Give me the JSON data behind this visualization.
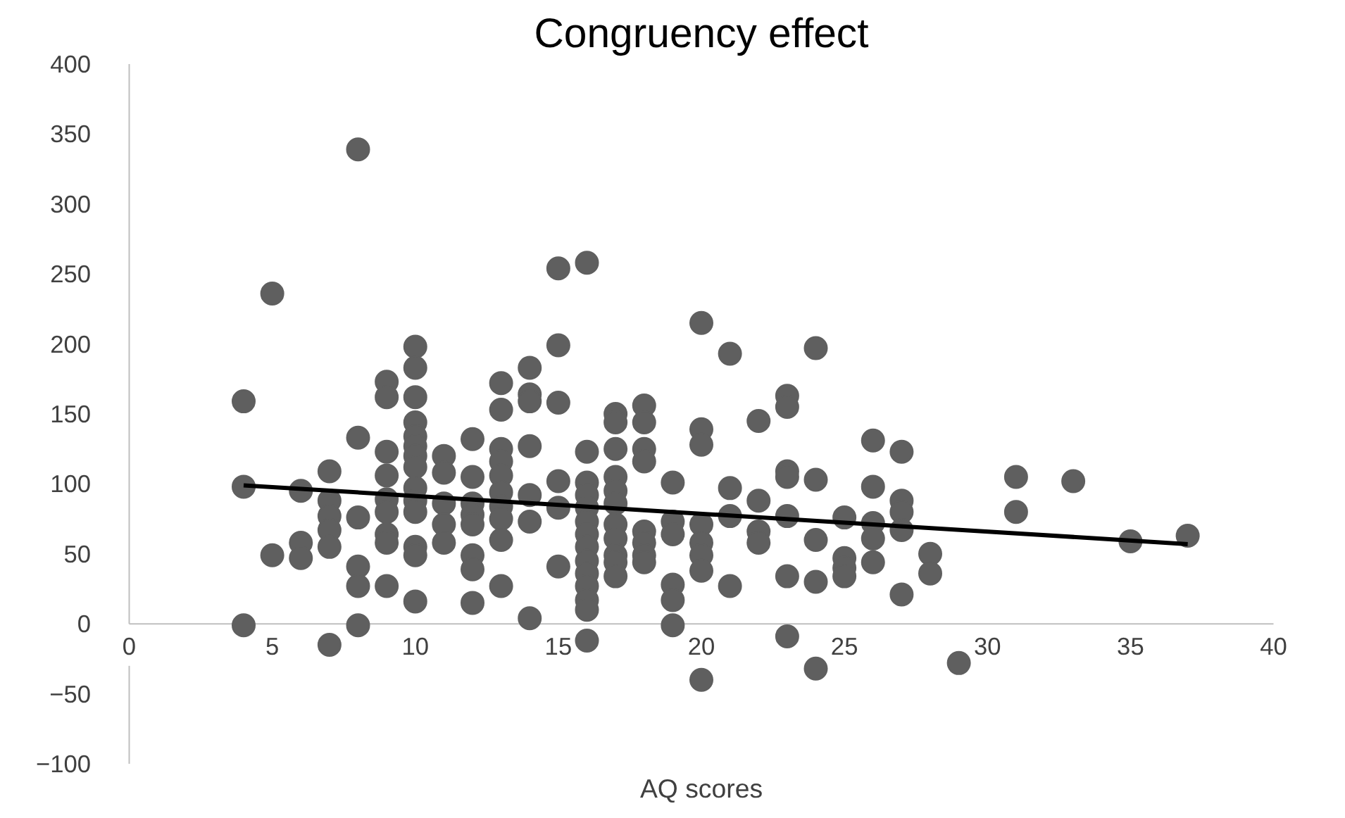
{
  "chart_data": {
    "type": "scatter",
    "title": "Congruency effect",
    "xlabel": "AQ scores",
    "xlim": [
      0,
      40
    ],
    "xticks": [
      0,
      5,
      10,
      15,
      20,
      25,
      30,
      35,
      40
    ],
    "ylim": [
      -100,
      400
    ],
    "yticks": [
      -100,
      -50,
      0,
      50,
      100,
      150,
      200,
      250,
      300,
      350,
      400
    ],
    "grid": false,
    "series": [
      {
        "color": "#5f5f5f",
        "marker": "circle",
        "x": [
          4,
          4,
          4,
          5,
          5,
          6,
          6,
          6,
          7,
          7,
          7,
          7,
          7,
          7,
          8,
          8,
          8,
          8,
          8,
          8,
          9,
          9,
          9,
          9,
          9,
          9,
          9,
          9,
          9,
          10,
          10,
          10,
          10,
          10,
          10,
          10,
          10,
          10,
          10,
          10,
          10,
          10,
          10,
          11,
          11,
          11,
          11,
          11,
          12,
          12,
          12,
          12,
          12,
          12,
          12,
          12,
          13,
          13,
          13,
          13,
          13,
          13,
          13,
          13,
          13,
          13,
          14,
          14,
          14,
          14,
          14,
          14,
          14,
          15,
          15,
          15,
          15,
          15,
          15,
          16,
          16,
          16,
          16,
          16,
          16,
          16,
          16,
          16,
          16,
          16,
          16,
          16,
          16,
          17,
          17,
          17,
          17,
          17,
          17,
          17,
          17,
          17,
          17,
          17,
          18,
          18,
          18,
          18,
          18,
          18,
          18,
          18,
          19,
          19,
          19,
          19,
          19,
          19,
          20,
          20,
          20,
          20,
          20,
          20,
          20,
          20,
          21,
          21,
          21,
          21,
          22,
          22,
          22,
          22,
          23,
          23,
          23,
          23,
          23,
          23,
          23,
          24,
          24,
          24,
          24,
          24,
          25,
          25,
          25,
          25,
          26,
          26,
          26,
          26,
          26,
          27,
          27,
          27,
          27,
          27,
          28,
          28,
          29,
          31,
          31,
          33,
          35,
          37
        ],
        "values": [
          159,
          98,
          -1,
          236,
          49,
          95,
          58,
          47,
          109,
          88,
          77,
          67,
          55,
          -15,
          339,
          133,
          76,
          41,
          27,
          -1,
          173,
          162,
          123,
          106,
          89,
          80,
          64,
          58,
          27,
          198,
          183,
          162,
          144,
          134,
          127,
          120,
          112,
          97,
          88,
          80,
          55,
          49,
          16,
          120,
          108,
          86,
          71,
          58,
          132,
          105,
          86,
          78,
          71,
          49,
          39,
          15,
          172,
          153,
          125,
          116,
          106,
          94,
          84,
          75,
          60,
          27,
          183,
          164,
          159,
          127,
          92,
          73,
          4,
          254,
          199,
          158,
          102,
          83,
          41,
          258,
          123,
          101,
          92,
          83,
          73,
          64,
          55,
          45,
          36,
          27,
          17,
          10,
          -12,
          150,
          144,
          125,
          105,
          95,
          86,
          71,
          61,
          49,
          44,
          34,
          156,
          144,
          125,
          116,
          66,
          58,
          49,
          44,
          101,
          73,
          64,
          28,
          17,
          -1,
          215,
          139,
          128,
          71,
          58,
          49,
          38,
          -40,
          193,
          97,
          77,
          27,
          145,
          88,
          66,
          58,
          163,
          155,
          109,
          105,
          77,
          34,
          -9,
          197,
          103,
          60,
          30,
          -32,
          76,
          47,
          40,
          34,
          131,
          98,
          72,
          61,
          44,
          123,
          88,
          80,
          67,
          21,
          50,
          36,
          -28,
          105,
          80,
          102,
          59,
          63
        ]
      },
      {
        "type": "line",
        "color": "#000000",
        "line_style": "solid",
        "marker": "none",
        "x": [
          4,
          37
        ],
        "values": [
          99,
          57
        ]
      }
    ]
  }
}
